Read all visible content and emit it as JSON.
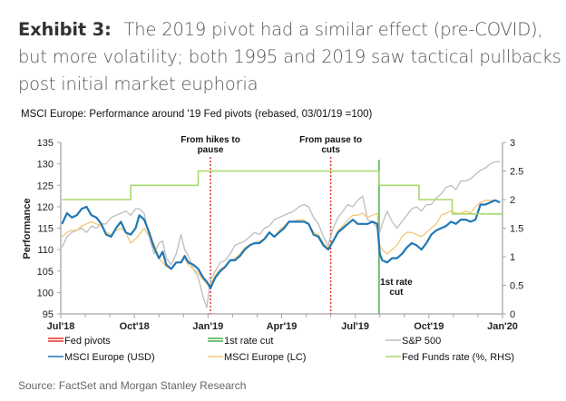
{
  "headline": {
    "exhibit": "Exhibit 3:",
    "text": "The 2019 pivot had a similar effect (pre-COVID), but more volatility; both 1995 and 2019 saw tactical pullbacks post initial market euphoria"
  },
  "source": "Source: FactSet and Morgan Stanley Research",
  "chart_data": {
    "type": "line",
    "title": "MSCI Europe: Performance around '19 Fed pivots (rebased, 03/01/19 =100)",
    "xlabel": "",
    "ylabel": "Performance",
    "y2label": "",
    "x_unit": "months since Jul 2018",
    "xlim": [
      0,
      18
    ],
    "ylim": [
      95,
      135
    ],
    "y2lim": [
      0,
      3
    ],
    "yticks": [
      95,
      100,
      105,
      110,
      115,
      120,
      125,
      130,
      135
    ],
    "y2ticks": [
      "0",
      "0.5",
      "1",
      "1.5",
      "2",
      "2.5",
      "3"
    ],
    "y2tick_values": [
      0,
      0.5,
      1,
      1.5,
      2,
      2.5,
      3
    ],
    "xticks": [
      {
        "label": "Jul'18",
        "x": 0
      },
      {
        "label": "Oct'18",
        "x": 3
      },
      {
        "label": "Jan'19",
        "x": 6
      },
      {
        "label": "Apr'19",
        "x": 9
      },
      {
        "label": "Jul'19",
        "x": 12
      },
      {
        "label": "Oct'19",
        "x": 15
      },
      {
        "label": "Jan'20",
        "x": 18
      }
    ],
    "minor_xticks": [
      1,
      2,
      4,
      5,
      7,
      8,
      10,
      11,
      13,
      14,
      16,
      17
    ],
    "grid": false,
    "legend_position": "bottom",
    "vlines": [
      {
        "name": "Fed pivots",
        "x": 6.1,
        "color": "#e8302a",
        "style": "dashed",
        "label": [
          "From hikes to",
          "pause"
        ]
      },
      {
        "name": "Fed pivots",
        "x": 11.0,
        "color": "#e8302a",
        "style": "dashed",
        "label": [
          "From pause to",
          "cuts"
        ]
      },
      {
        "name": "1st rate cut",
        "x": 12.97,
        "color": "#4caf50",
        "style": "solid",
        "label": [
          "1st rate",
          "cut"
        ]
      }
    ],
    "series": [
      {
        "name": "S&P 500",
        "color": "#bdbdbd",
        "axis": "left",
        "x": [
          0.05,
          0.25,
          0.45,
          0.65,
          0.85,
          1.05,
          1.25,
          1.45,
          1.65,
          1.85,
          2.05,
          2.25,
          2.45,
          2.65,
          2.85,
          3.05,
          3.2,
          3.4,
          3.6,
          3.8,
          4.0,
          4.15,
          4.3,
          4.5,
          4.7,
          4.9,
          5.05,
          5.2,
          5.4,
          5.6,
          5.8,
          5.95,
          6.1,
          6.3,
          6.5,
          6.7,
          6.9,
          7.1,
          7.3,
          7.5,
          7.7,
          7.9,
          8.1,
          8.3,
          8.5,
          8.7,
          8.9,
          9.1,
          9.3,
          9.5,
          9.7,
          9.9,
          10.1,
          10.3,
          10.5,
          10.7,
          10.9,
          11.1,
          11.3,
          11.5,
          11.7,
          11.9,
          12.1,
          12.3,
          12.5,
          12.7,
          12.9,
          13.0,
          13.1,
          13.3,
          13.5,
          13.7,
          13.9,
          14.1,
          14.3,
          14.5,
          14.7,
          14.9,
          15.1,
          15.3,
          15.5,
          15.7,
          15.9,
          16.1,
          16.3,
          16.5,
          16.7,
          16.9,
          17.1,
          17.3,
          17.5,
          17.7,
          17.9
        ],
        "values": [
          110.5,
          113,
          114,
          114.5,
          115,
          114,
          115.5,
          115,
          116,
          116,
          117.5,
          118,
          118.5,
          119,
          118,
          119.5,
          119.5,
          118.5,
          113,
          109,
          111.5,
          112,
          108,
          106.5,
          109,
          113.5,
          110,
          108.5,
          105.5,
          103.5,
          99,
          96.5,
          103,
          105,
          107,
          107.5,
          109,
          111,
          111.5,
          112,
          113,
          114,
          113.5,
          115,
          115.5,
          117,
          117.5,
          118,
          118.5,
          119,
          120,
          120.5,
          120,
          117.5,
          116,
          113,
          111,
          115,
          117.5,
          119,
          120.5,
          120,
          121.5,
          122.5,
          117,
          116.5,
          115,
          114,
          116,
          119,
          116.5,
          115,
          116.5,
          118,
          119.5,
          120,
          119,
          120.5,
          120.5,
          122,
          123,
          124.5,
          125,
          124,
          126,
          126,
          126.5,
          127.5,
          128.5,
          129,
          130,
          130.5,
          130.5
        ]
      },
      {
        "name": "MSCI Europe (LC)",
        "color": "#f2c879",
        "axis": "left",
        "x": [
          0.05,
          0.25,
          0.45,
          0.65,
          0.85,
          1.05,
          1.25,
          1.45,
          1.65,
          1.85,
          2.05,
          2.25,
          2.45,
          2.65,
          2.85,
          3.05,
          3.2,
          3.4,
          3.6,
          3.8,
          4.0,
          4.15,
          4.3,
          4.5,
          4.7,
          4.9,
          5.05,
          5.2,
          5.4,
          5.6,
          5.8,
          5.95,
          6.1,
          6.3,
          6.5,
          6.7,
          6.9,
          7.1,
          7.3,
          7.5,
          7.7,
          7.9,
          8.1,
          8.3,
          8.5,
          8.7,
          8.9,
          9.1,
          9.3,
          9.5,
          9.7,
          9.9,
          10.1,
          10.3,
          10.5,
          10.7,
          10.9,
          11.1,
          11.3,
          11.5,
          11.7,
          11.9,
          12.1,
          12.3,
          12.5,
          12.7,
          12.9,
          13.0,
          13.1,
          13.3,
          13.5,
          13.7,
          13.9,
          14.1,
          14.3,
          14.5,
          14.7,
          14.9,
          15.1,
          15.3,
          15.5,
          15.7,
          15.9,
          16.1,
          16.3,
          16.5,
          16.7,
          16.9,
          17.1,
          17.3,
          17.5,
          17.7,
          17.9
        ],
        "values": [
          113,
          114,
          114.5,
          114.5,
          115.5,
          116,
          116.5,
          116,
          115.5,
          114,
          113.5,
          114.5,
          115,
          114,
          111.5,
          112.5,
          113.5,
          115,
          113,
          111.5,
          108,
          107,
          106,
          105.5,
          107,
          107,
          108,
          106.5,
          105.5,
          104.5,
          103,
          102,
          102,
          104,
          105.5,
          106,
          107.5,
          108,
          109,
          110.5,
          111,
          111.5,
          112,
          112.5,
          114,
          113,
          114.5,
          115.5,
          116.5,
          116.5,
          117,
          117,
          116,
          114,
          113.5,
          111.5,
          110.5,
          112,
          114.5,
          115.5,
          117,
          118,
          118,
          118.5,
          117.5,
          118,
          118.5,
          111,
          110,
          109,
          110,
          111,
          113,
          114,
          114,
          113.5,
          113,
          114,
          115,
          116,
          118,
          118.5,
          119,
          118.5,
          118.5,
          119,
          118.5,
          120,
          121,
          121.5,
          121.5,
          121.5,
          121
        ]
      },
      {
        "name": "MSCI Europe (USD)",
        "color": "#1f77b4",
        "axis": "left",
        "x": [
          0.05,
          0.25,
          0.45,
          0.65,
          0.85,
          1.05,
          1.25,
          1.45,
          1.65,
          1.85,
          2.05,
          2.25,
          2.45,
          2.65,
          2.85,
          3.05,
          3.2,
          3.4,
          3.6,
          3.8,
          4.0,
          4.15,
          4.3,
          4.5,
          4.7,
          4.9,
          5.05,
          5.2,
          5.4,
          5.6,
          5.8,
          5.95,
          6.1,
          6.3,
          6.5,
          6.7,
          6.9,
          7.1,
          7.3,
          7.5,
          7.7,
          7.9,
          8.1,
          8.3,
          8.5,
          8.7,
          8.9,
          9.1,
          9.3,
          9.5,
          9.7,
          9.9,
          10.1,
          10.3,
          10.5,
          10.7,
          10.9,
          11.1,
          11.3,
          11.5,
          11.7,
          11.9,
          12.1,
          12.3,
          12.5,
          12.7,
          12.9,
          13.0,
          13.1,
          13.3,
          13.5,
          13.7,
          13.9,
          14.1,
          14.3,
          14.5,
          14.7,
          14.9,
          15.1,
          15.3,
          15.5,
          15.7,
          15.9,
          16.1,
          16.3,
          16.5,
          16.7,
          16.9,
          17.1,
          17.3,
          17.5,
          17.7,
          17.9
        ],
        "values": [
          116,
          118.5,
          117.5,
          118,
          119.5,
          120,
          118,
          117.5,
          116,
          113.5,
          113,
          115,
          116.5,
          114,
          113.5,
          115,
          118,
          117,
          114,
          110.5,
          108,
          109.5,
          106.5,
          105.5,
          107,
          107,
          108.5,
          107,
          106.5,
          105.5,
          103.5,
          102.5,
          101,
          103.5,
          105,
          106,
          107.5,
          107.5,
          108.5,
          110,
          111,
          111.5,
          111.5,
          112.5,
          114,
          113,
          114,
          115,
          116.5,
          116.5,
          116.5,
          116.5,
          116,
          113.5,
          113,
          111,
          110,
          112,
          114,
          115,
          116,
          117,
          116,
          116,
          116,
          116.5,
          116,
          109,
          107.5,
          107,
          108,
          108,
          109,
          110.5,
          111.5,
          111,
          110,
          111.5,
          113.5,
          114.5,
          115,
          115.5,
          116.5,
          116,
          117,
          117,
          116.5,
          117,
          120.5,
          120.5,
          121,
          121.5,
          121
        ]
      },
      {
        "name": "Fed Funds rate (%, RHS)",
        "color": "#a6d96a",
        "axis": "right",
        "step": true,
        "x": [
          0.05,
          2.85,
          5.6,
          12.97,
          14.6,
          15.95,
          18
        ],
        "values": [
          2.0,
          2.25,
          2.5,
          2.25,
          2.0,
          1.75,
          1.75
        ]
      }
    ]
  },
  "legend": [
    {
      "label": "Fed pivots",
      "color": "#e8302a",
      "kind": "double"
    },
    {
      "label": "1st rate cut",
      "color": "#4caf50",
      "kind": "double"
    },
    {
      "label": "S&P 500",
      "color": "#bdbdbd",
      "kind": "single"
    },
    {
      "label": "MSCI Europe (USD)",
      "color": "#1f77b4",
      "kind": "single"
    },
    {
      "label": "MSCI Europe (LC)",
      "color": "#f2c879",
      "kind": "single"
    },
    {
      "label": "Fed Funds rate (%, RHS)",
      "color": "#a6d96a",
      "kind": "single"
    }
  ]
}
